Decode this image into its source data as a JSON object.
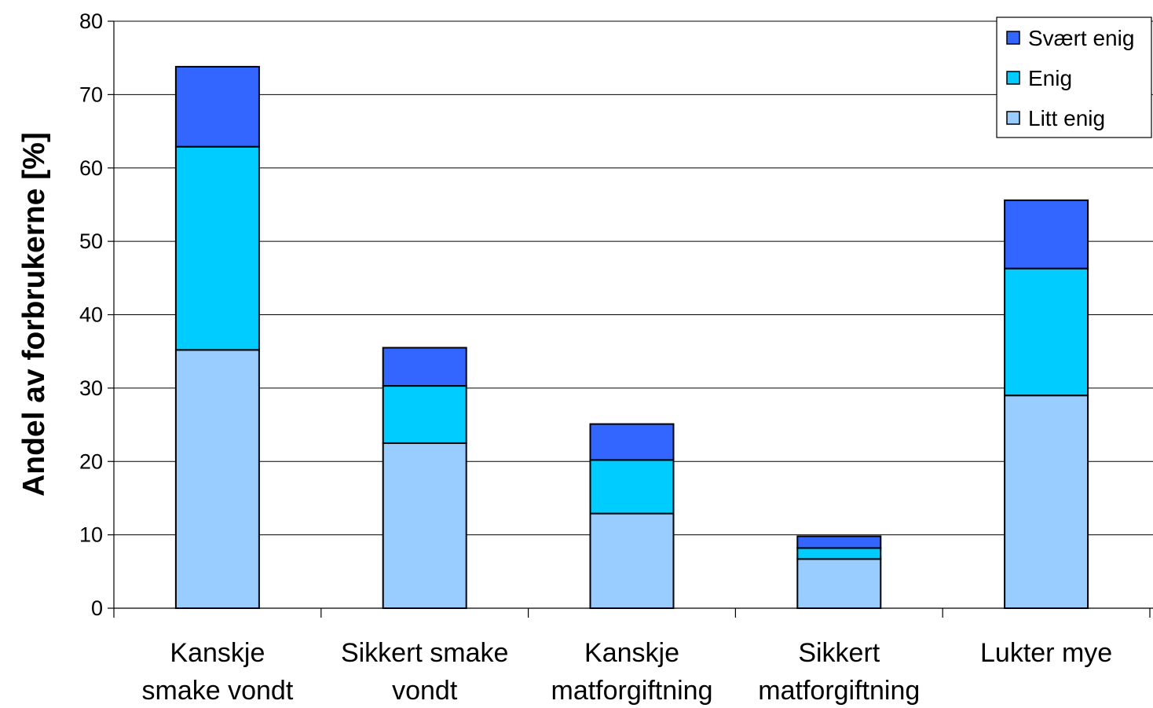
{
  "chart_data": {
    "type": "bar",
    "stacked": true,
    "categories": [
      [
        "Kanskje",
        "smake vondt"
      ],
      [
        "Sikkert smake",
        "vondt"
      ],
      [
        "Kanskje",
        "matforgiftning"
      ],
      [
        "Sikkert",
        "matforgiftning"
      ],
      [
        "Lukter mye"
      ]
    ],
    "series": [
      {
        "name": "Litt enig",
        "values": [
          35.2,
          22.5,
          12.9,
          6.7,
          29.0
        ],
        "color": "#99ccff"
      },
      {
        "name": "Enig",
        "values": [
          27.7,
          7.8,
          7.3,
          1.5,
          17.3
        ],
        "color": "#00ccff"
      },
      {
        "name": "Svært enig",
        "values": [
          10.9,
          5.2,
          4.9,
          1.6,
          9.3
        ],
        "color": "#3366ff"
      }
    ],
    "title": "",
    "xlabel": "",
    "ylabel": "Andel av forbrukerne [%]",
    "ylim": [
      0,
      80
    ],
    "yticks": [
      "0",
      "10",
      "20",
      "30",
      "40",
      "50",
      "60",
      "70",
      "80"
    ],
    "grid": true,
    "legend": "top-right",
    "legend_order": [
      "Svært enig",
      "Enig",
      "Litt enig"
    ]
  }
}
